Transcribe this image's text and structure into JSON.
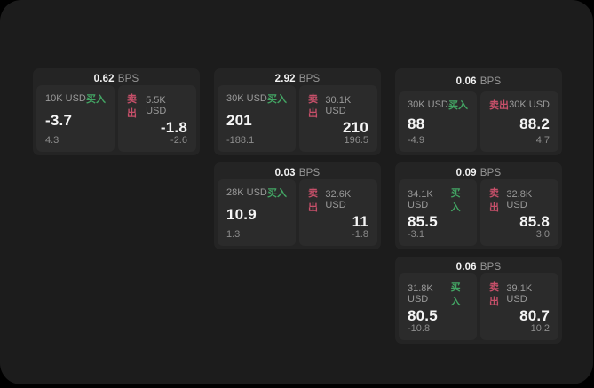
{
  "labels": {
    "buy": "买入",
    "sell": "卖出",
    "bps": "BPS"
  },
  "colors": {
    "buy": "#43a564",
    "sell": "#c7506a",
    "panel_bg": "#1c1c1c",
    "card_bg": "#242424",
    "pane_bg": "#2b2b2b"
  },
  "cards": [
    {
      "col": 1,
      "row": 1,
      "bps": "0.62",
      "buy": {
        "notional": "10K USD",
        "price": "-3.7",
        "delta": "4.3"
      },
      "sell": {
        "notional": "5.5K USD",
        "price": "-1.8",
        "delta": "-2.6"
      }
    },
    {
      "col": 2,
      "row": 1,
      "bps": "2.92",
      "buy": {
        "notional": "30K USD",
        "price": "201",
        "delta": "-188.1"
      },
      "sell": {
        "notional": "30.1K USD",
        "price": "210",
        "delta": "196.5"
      }
    },
    {
      "col": 3,
      "row": 1,
      "bps": "0.06",
      "buy": {
        "notional": "30K USD",
        "price": "88",
        "delta": "-4.9"
      },
      "sell": {
        "notional": "30K USD",
        "price": "88.2",
        "delta": "4.7"
      }
    },
    {
      "col": 2,
      "row": 2,
      "bps": "0.03",
      "buy": {
        "notional": "28K USD",
        "price": "10.9",
        "delta": "1.3"
      },
      "sell": {
        "notional": "32.6K USD",
        "price": "11",
        "delta": "-1.8"
      }
    },
    {
      "col": 3,
      "row": 2,
      "bps": "0.09",
      "buy": {
        "notional": "34.1K USD",
        "price": "85.5",
        "delta": "-3.1"
      },
      "sell": {
        "notional": "32.8K USD",
        "price": "85.8",
        "delta": "3.0"
      }
    },
    {
      "col": 3,
      "row": 3,
      "bps": "0.06",
      "buy": {
        "notional": "31.8K USD",
        "price": "80.5",
        "delta": "-10.8"
      },
      "sell": {
        "notional": "39.1K USD",
        "price": "80.7",
        "delta": "10.2"
      }
    }
  ]
}
